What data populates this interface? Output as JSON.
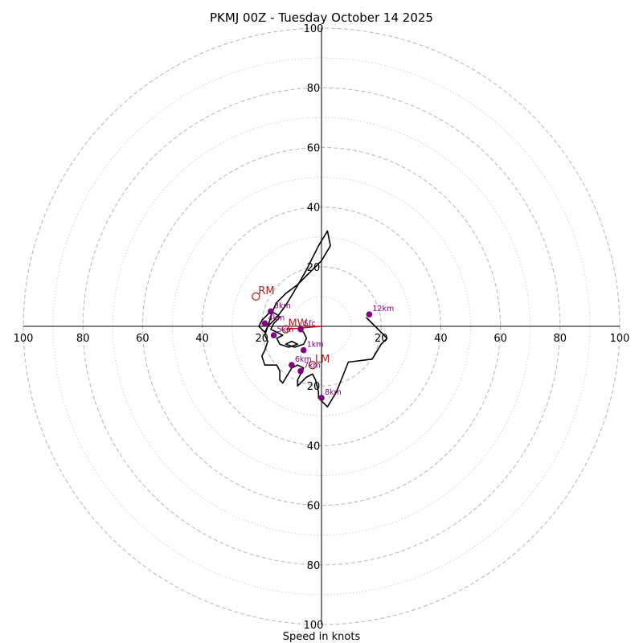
{
  "chart_data": {
    "type": "hodograph",
    "title": "PKMJ 00Z - Tuesday October 14 2025",
    "xlabel": "Speed in knots",
    "range": [
      -100,
      100
    ],
    "ring_major_step": 20,
    "ring_minor_step": 10,
    "tick_labels": [
      "100",
      "80",
      "60",
      "40",
      "20",
      "20",
      "40",
      "60",
      "80",
      "100"
    ],
    "tick_values": [
      -100,
      -80,
      -60,
      -40,
      -20,
      20,
      40,
      60,
      80,
      100
    ],
    "profile": [
      [
        -7,
        -1
      ],
      [
        -6,
        -2
      ],
      [
        -5,
        -4
      ],
      [
        -6,
        -6
      ],
      [
        -9,
        -7
      ],
      [
        -12,
        -6
      ],
      [
        -10,
        -5
      ],
      [
        -8,
        -6
      ],
      [
        -11,
        -7
      ],
      [
        -14,
        -6
      ],
      [
        -15,
        -4
      ],
      [
        -13,
        -3
      ],
      [
        -15,
        -2
      ],
      [
        -17,
        -1
      ],
      [
        -16,
        1
      ],
      [
        -14,
        3
      ],
      [
        -15,
        4
      ],
      [
        -17,
        5
      ],
      [
        -20,
        2
      ],
      [
        -21,
        0
      ],
      [
        -19,
        -2
      ],
      [
        -18,
        0
      ],
      [
        -17,
        3
      ],
      [
        -16,
        6
      ],
      [
        -15,
        8
      ],
      [
        -12,
        11
      ],
      [
        -8,
        14
      ],
      [
        -4,
        18
      ],
      [
        0,
        22
      ],
      [
        3,
        27
      ],
      [
        2,
        32
      ],
      [
        -1,
        27
      ],
      [
        -5,
        19
      ],
      [
        -9,
        12
      ],
      [
        -12,
        7
      ],
      [
        -15,
        3
      ],
      [
        -18,
        0
      ],
      [
        -19,
        -3
      ],
      [
        -18,
        -5
      ],
      [
        -19,
        -8
      ],
      [
        -20,
        -10
      ],
      [
        -19,
        -13
      ],
      [
        -17,
        -13
      ],
      [
        -15,
        -13
      ],
      [
        -14,
        -15
      ],
      [
        -14,
        -18
      ],
      [
        -13,
        -19
      ],
      [
        -10,
        -14
      ],
      [
        -8,
        -13
      ],
      [
        -6,
        -14
      ],
      [
        -7,
        -16
      ],
      [
        -8,
        -18
      ],
      [
        -8,
        -20
      ],
      [
        -5,
        -17
      ],
      [
        -3,
        -16
      ],
      [
        -2,
        -18
      ],
      [
        -1,
        -22
      ],
      [
        -1,
        -24
      ],
      [
        2,
        -27
      ],
      [
        5,
        -22
      ],
      [
        9,
        -12
      ],
      [
        17,
        -11
      ],
      [
        20,
        -6
      ],
      [
        22,
        -4
      ],
      [
        20,
        -2
      ],
      [
        18,
        0
      ],
      [
        15,
        3
      ]
    ],
    "height_markers": [
      {
        "label": "Sfc",
        "u": -7,
        "v": -1
      },
      {
        "label": "1km",
        "u": -6,
        "v": -8
      },
      {
        "label": "3km",
        "u": -17,
        "v": 5
      },
      {
        "label": "4km",
        "u": -19,
        "v": 1
      },
      {
        "label": "5km",
        "u": -16,
        "v": -3
      },
      {
        "label": "6km",
        "u": -10,
        "v": -13
      },
      {
        "label": "7km",
        "u": -7,
        "v": -15
      },
      {
        "label": "8km",
        "u": 0,
        "v": -24
      },
      {
        "label": "12km",
        "u": 16,
        "v": 4
      }
    ],
    "storm_motion": [
      {
        "label": "RM",
        "u": -22,
        "v": 10
      },
      {
        "label": "LM",
        "u": -3,
        "v": -13
      },
      {
        "label": "MW",
        "u": -12,
        "v": -1
      }
    ],
    "shear_vector": {
      "from": [
        -12,
        -1
      ],
      "to": [
        0,
        0
      ]
    },
    "colors": {
      "trace": "#000000",
      "marker": "#800080",
      "marker_label": "#800080",
      "storm_motion": "#b22222",
      "shear": "#e00000",
      "ring_major": "#bbbbbb",
      "ring_minor": "#cccccc",
      "axis": "#000000"
    }
  }
}
